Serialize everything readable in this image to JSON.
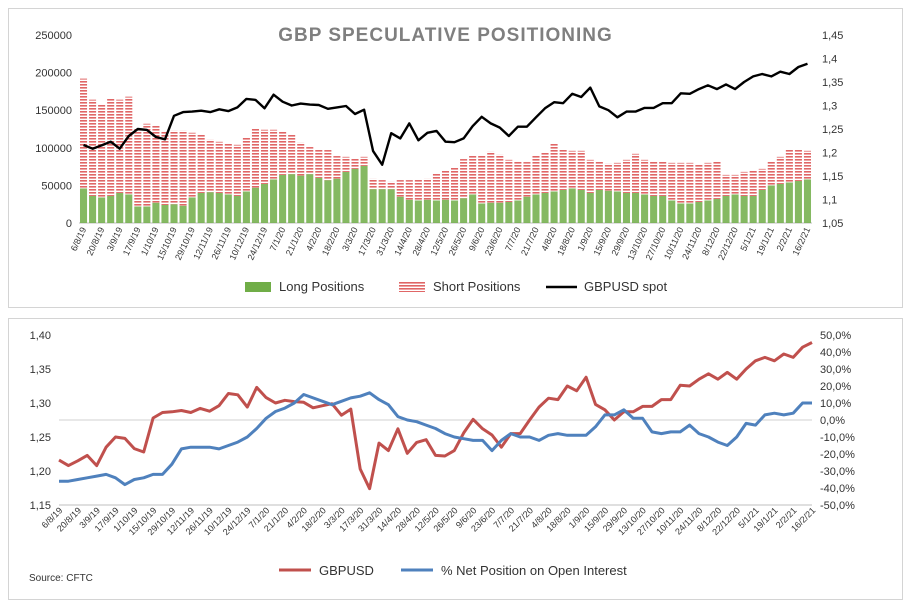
{
  "chart_data": [
    {
      "type": "bar",
      "title": "GBP SPECULATIVE POSITIONING",
      "stacked": true,
      "categories": [
        "6/8/19",
        "13/8/19",
        "20/8/19",
        "27/8/19",
        "3/9/19",
        "10/9/19",
        "17/9/19",
        "24/9/19",
        "1/10/19",
        "8/10/19",
        "15/10/19",
        "22/10/19",
        "29/10/19",
        "5/11/19",
        "12/11/19",
        "19/11/19",
        "26/11/19",
        "3/12/19",
        "10/12/19",
        "17/12/19",
        "24/12/19",
        "31/12/19",
        "7/1/20",
        "14/1/20",
        "21/1/20",
        "28/1/20",
        "4/2/20",
        "11/2/20",
        "18/2/20",
        "25/2/20",
        "3/3/20",
        "10/3/20",
        "17/3/20",
        "24/3/20",
        "31/3/20",
        "7/4/20",
        "14/4/20",
        "21/4/20",
        "28/4/20",
        "5/5/20",
        "12/5/20",
        "19/5/20",
        "26/5/20",
        "2/6/20",
        "9/6/20",
        "16/6/20",
        "23/6/20",
        "30/6/20",
        "7/7/20",
        "14/7/20",
        "21/7/20",
        "28/7/20",
        "4/8/20",
        "11/8/20",
        "18/8/20",
        "25/8/20",
        "1/9/20",
        "8/9/20",
        "15/9/20",
        "22/9/20",
        "29/9/20",
        "6/10/20",
        "13/10/20",
        "20/10/20",
        "27/10/20",
        "3/11/20",
        "10/11/20",
        "17/11/20",
        "24/11/20",
        "1/12/20",
        "8/12/20",
        "15/12/20",
        "22/12/20",
        "29/12/20",
        "5/1/21",
        "12/1/21",
        "19/1/21",
        "26/1/21",
        "2/2/21",
        "9/2/21",
        "16/2/21"
      ],
      "tick_labels": [
        "6/8/19",
        "20/8/19",
        "3/9/19",
        "17/9/19",
        "1/10/19",
        "15/10/19",
        "29/10/19",
        "12/11/19",
        "26/11/19",
        "10/12/19",
        "24/12/19",
        "7/1/20",
        "21/1/20",
        "4/2/20",
        "18/2/20",
        "3/3/20",
        "17/3/20",
        "31/3/20",
        "14/4/20",
        "28/4/20",
        "12/5/20",
        "26/5/20",
        "9/6/20",
        "23/6/20",
        "7/7/20",
        "21/7/20",
        "4/8/20",
        "18/8/20",
        "1/9/20",
        "15/9/20",
        "29/9/20",
        "13/10/20",
        "27/10/20",
        "10/11/20",
        "24/11/20",
        "8/12/20",
        "22/12/20",
        "5/1/21",
        "19/1/21",
        "2/2/21",
        "16/2/21"
      ],
      "series": [
        {
          "name": "Long Positions",
          "color": "#70ad47",
          "values": [
            46000,
            36000,
            34000,
            36000,
            40000,
            38000,
            22000,
            22000,
            27000,
            24000,
            25000,
            23000,
            34000,
            40000,
            41000,
            40000,
            38000,
            36000,
            42000,
            47000,
            52000,
            58000,
            64000,
            65000,
            63000,
            65000,
            60000,
            57000,
            59000,
            68000,
            72000,
            76000,
            45000,
            45000,
            45000,
            35000,
            31000,
            30000,
            31000,
            30000,
            31000,
            30000,
            33000,
            38000,
            26000,
            27000,
            27000,
            28000,
            30000,
            35000,
            38000,
            40000,
            42000,
            44000,
            46000,
            44000,
            40000,
            44000,
            43000,
            42000,
            40000,
            40000,
            38000,
            36000,
            36000,
            30000,
            26000,
            26000,
            28000,
            30000,
            32000,
            36000,
            38000,
            36000,
            36000,
            44000,
            50000,
            52000,
            54000,
            56000,
            58000
          ]
        },
        {
          "name": "Short Positions",
          "color": "#e06666",
          "values": [
            146000,
            128000,
            124000,
            130000,
            124000,
            130000,
            104000,
            110000,
            102000,
            98000,
            98000,
            100000,
            86000,
            78000,
            70000,
            68000,
            68000,
            68000,
            72000,
            78000,
            72000,
            66000,
            58000,
            52000,
            44000,
            36000,
            38000,
            40000,
            30000,
            20000,
            14000,
            12000,
            14000,
            12000,
            10000,
            22000,
            26000,
            28000,
            28000,
            36000,
            39000,
            44000,
            52000,
            52000,
            64000,
            68000,
            64000,
            56000,
            52000,
            46000,
            52000,
            54000,
            64000,
            54000,
            50000,
            52000,
            44000,
            38000,
            36000,
            38000,
            44000,
            52000,
            46000,
            46000,
            46000,
            50000,
            54000,
            54000,
            50000,
            50000,
            50000,
            28000,
            26000,
            32000,
            34000,
            28000,
            32000,
            36000,
            44000,
            42000,
            38000
          ]
        }
      ],
      "line_series": {
        "name": "GBPUSD spot",
        "color": "#000000",
        "values": [
          1.216,
          1.208,
          1.215,
          1.223,
          1.208,
          1.235,
          1.25,
          1.248,
          1.233,
          1.228,
          1.278,
          1.286,
          1.287,
          1.289,
          1.286,
          1.292,
          1.288,
          1.296,
          1.314,
          1.312,
          1.294,
          1.323,
          1.308,
          1.3,
          1.304,
          1.302,
          1.301,
          1.293,
          1.296,
          1.299,
          1.282,
          1.291,
          1.203,
          1.174,
          1.241,
          1.23,
          1.262,
          1.226,
          1.242,
          1.246,
          1.223,
          1.222,
          1.23,
          1.256,
          1.276,
          1.262,
          1.253,
          1.235,
          1.255,
          1.255,
          1.275,
          1.294,
          1.307,
          1.305,
          1.325,
          1.318,
          1.338,
          1.298,
          1.29,
          1.275,
          1.287,
          1.287,
          1.295,
          1.295,
          1.305,
          1.305,
          1.326,
          1.325,
          1.335,
          1.343,
          1.335,
          1.345,
          1.335,
          1.35,
          1.362,
          1.367,
          1.362,
          1.372,
          1.367,
          1.382,
          1.389
        ]
      },
      "ylim": [
        0,
        250000
      ],
      "y_ticks": [
        "0",
        "50000",
        "100000",
        "150000",
        "200000",
        "250000"
      ],
      "y2lim": [
        1.05,
        1.45
      ],
      "y2_ticks": [
        "1,05",
        "1,1",
        "1,15",
        "1,2",
        "1,25",
        "1,3",
        "1,35",
        "1,4",
        "1,45"
      ],
      "legend": [
        "Long Positions",
        "Short Positions",
        "GBPUSD spot"
      ],
      "legend_position": "bottom",
      "grid": false
    },
    {
      "type": "line",
      "categories_ref": "same weekly dates as chart 1",
      "tick_labels": [
        "6/8/19",
        "20/8/19",
        "3/9/19",
        "17/9/19",
        "1/10/19",
        "15/10/19",
        "29/10/19",
        "12/11/19",
        "26/11/19",
        "10/12/19",
        "24/12/19",
        "7/1/20",
        "21/1/20",
        "4/2/20",
        "18/2/20",
        "3/3/20",
        "17/3/20",
        "31/3/20",
        "14/4/20",
        "28/4/20",
        "12/5/20",
        "26/5/20",
        "9/6/20",
        "23/6/20",
        "7/7/20",
        "21/7/20",
        "4/8/20",
        "18/8/20",
        "1/9/20",
        "15/9/20",
        "29/9/20",
        "13/10/20",
        "27/10/20",
        "10/11/20",
        "24/11/20",
        "8/12/20",
        "22/12/20",
        "5/1/21",
        "19/1/21",
        "2/2/21",
        "16/2/21"
      ],
      "series": [
        {
          "name": "GBPUSD",
          "color": "#c0504d",
          "axis": "left",
          "values": [
            1.216,
            1.208,
            1.215,
            1.223,
            1.208,
            1.235,
            1.25,
            1.248,
            1.233,
            1.228,
            1.278,
            1.286,
            1.287,
            1.289,
            1.286,
            1.292,
            1.288,
            1.296,
            1.314,
            1.312,
            1.294,
            1.323,
            1.308,
            1.3,
            1.304,
            1.302,
            1.301,
            1.293,
            1.296,
            1.299,
            1.282,
            1.291,
            1.203,
            1.174,
            1.241,
            1.23,
            1.262,
            1.226,
            1.242,
            1.246,
            1.223,
            1.222,
            1.23,
            1.256,
            1.276,
            1.262,
            1.253,
            1.235,
            1.255,
            1.255,
            1.275,
            1.294,
            1.307,
            1.305,
            1.325,
            1.318,
            1.338,
            1.298,
            1.29,
            1.275,
            1.287,
            1.287,
            1.295,
            1.295,
            1.305,
            1.305,
            1.326,
            1.325,
            1.335,
            1.343,
            1.335,
            1.345,
            1.335,
            1.35,
            1.362,
            1.367,
            1.362,
            1.372,
            1.367,
            1.382,
            1.389
          ]
        },
        {
          "name": "% Net Position on Open Interest",
          "color": "#4f81bd",
          "axis": "right",
          "values": [
            -36,
            -36,
            -35,
            -34,
            -33,
            -32,
            -34,
            -38,
            -35,
            -34,
            -32,
            -32,
            -26,
            -17,
            -16,
            -16,
            -16,
            -17,
            -15,
            -13,
            -10,
            -5,
            1,
            5,
            7,
            10,
            15,
            13,
            11,
            9,
            11,
            13,
            14,
            16,
            12,
            9,
            2,
            0,
            -1,
            -3,
            -5,
            -8,
            -10,
            -11,
            -12,
            -12,
            -18,
            -12,
            -8,
            -10,
            -10,
            -12,
            -9,
            -8,
            -9,
            -9,
            -9,
            -4,
            3,
            3,
            6,
            1,
            1,
            -7,
            -8,
            -7,
            -7,
            -3,
            -8,
            -10,
            -13,
            -15,
            -10,
            -2,
            -3,
            3,
            4,
            3,
            4,
            10,
            10
          ]
        }
      ],
      "ylim": [
        1.15,
        1.4
      ],
      "y_ticks": [
        "1,15",
        "1,20",
        "1,25",
        "1,30",
        "1,35",
        "1,40"
      ],
      "y2lim": [
        -50,
        50
      ],
      "y2_ticks": [
        "-50,0%",
        "-40,0%",
        "-30,0%",
        "-20,0%",
        "-10,0%",
        "0,0%",
        "10,0%",
        "20,0%",
        "30,0%",
        "40,0%",
        "50,0%"
      ],
      "legend": [
        "GBPUSD",
        "% Net Position on Open Interest"
      ],
      "legend_position": "bottom",
      "source": "Source: CFTC",
      "grid": false
    }
  ]
}
